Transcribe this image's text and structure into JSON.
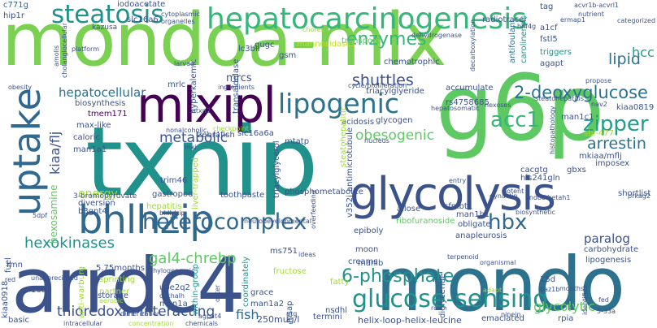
{
  "words": [
    {
      "text": "mondoa-mlx",
      "color": "#7ad151"
    },
    {
      "text": "txnip",
      "color": "#21918c"
    },
    {
      "text": "arrdc4",
      "color": "#3b528b"
    },
    {
      "text": "mondo",
      "color": "#2c728e"
    },
    {
      "text": "g6p",
      "color": "#5ec962"
    },
    {
      "text": "mlxipl",
      "color": "#440154"
    },
    {
      "text": "glycolysis",
      "color": "#3b528b"
    },
    {
      "text": "bhlhzip",
      "color": "#31688e"
    },
    {
      "text": "uptake",
      "color": "#31688e"
    },
    {
      "text": "hepatocarcinogenesis",
      "color": "#35b779"
    },
    {
      "text": "steatosis",
      "color": "#21918c"
    },
    {
      "text": "lipogenic",
      "color": "#2c728e"
    },
    {
      "text": "glucose-sensing",
      "color": "#21918c"
    },
    {
      "text": "heterocomplex",
      "color": "#31688e"
    },
    {
      "text": "hbx",
      "color": "#31688e"
    },
    {
      "text": "acc1",
      "color": "#35b779"
    },
    {
      "text": "zipper",
      "color": "#1f9e89"
    },
    {
      "text": "arrestin",
      "color": "#2c728e"
    },
    {
      "text": "2-deoxyglucose",
      "color": "#2c728e"
    },
    {
      "text": "6-phosphate",
      "color": "#21918c"
    },
    {
      "text": "hexokinases",
      "color": "#21918c"
    },
    {
      "text": "gal4-chrebp",
      "color": "#5ec962"
    },
    {
      "text": "thioredoxin-interacting",
      "color": "#3b528b"
    },
    {
      "text": "hepatocellular",
      "color": "#2c728e"
    },
    {
      "text": "metabolic",
      "color": "#3b528b"
    },
    {
      "text": "obesogenic",
      "color": "#5ec962"
    },
    {
      "text": "shuttles",
      "color": "#3b528b"
    },
    {
      "text": "enzymes",
      "color": "#35b779"
    },
    {
      "text": "lipid",
      "color": "#2c728e"
    },
    {
      "text": "paralog",
      "color": "#3b528b"
    },
    {
      "text": "glycolytic",
      "color": "#5ec962"
    },
    {
      "text": "fish",
      "color": "#31688e"
    },
    {
      "text": "kiaa/flj",
      "color": "#3b528b"
    },
    {
      "text": "hexosamine",
      "color": "#5ec962"
    },
    {
      "text": "energy",
      "color": "#a0da39"
    },
    {
      "text": "hcc",
      "color": "#1f9e89"
    },
    {
      "text": "mrcs",
      "color": "#3b528b"
    },
    {
      "text": "c771g",
      "color": "#31688e"
    },
    {
      "text": "iodoacetate",
      "color": "#3b528b"
    },
    {
      "text": "slc16a6",
      "color": "#3b528b"
    },
    {
      "text": "kazusa",
      "color": "#3b528b"
    },
    {
      "text": "mannosidases",
      "color": "#c2df23"
    },
    {
      "text": "radiotracer",
      "color": "#3b528b"
    },
    {
      "text": "tag",
      "color": "#3b528b"
    },
    {
      "text": "a1cf",
      "color": "#3b528b"
    },
    {
      "text": "fstl5",
      "color": "#3b528b"
    },
    {
      "text": "triggers",
      "color": "#21918c"
    },
    {
      "text": "agapt",
      "color": "#3b528b"
    },
    {
      "text": "carolinensis",
      "color": "#21918c"
    },
    {
      "text": "antifoulant",
      "color": "#2c728e"
    },
    {
      "text": "chemotrophic",
      "color": "#3b528b"
    },
    {
      "text": "transport",
      "color": "#5ec962"
    },
    {
      "text": "gsm",
      "color": "#3b528b"
    },
    {
      "text": "lc3bii",
      "color": "#3b528b"
    },
    {
      "text": "gugc",
      "color": "#3b528b"
    },
    {
      "text": "mrlc",
      "color": "#3b528b"
    },
    {
      "text": "hyperkalemic",
      "color": "#3b528b"
    },
    {
      "text": "transaldolase",
      "color": "#3b528b"
    },
    {
      "text": "triacylglyeride",
      "color": "#3b528b"
    },
    {
      "text": "accumulate",
      "color": "#3b528b"
    },
    {
      "text": "rs4758685",
      "color": "#3b528b"
    },
    {
      "text": "biosynthesis",
      "color": "#3b528b"
    },
    {
      "text": "tmem171",
      "color": "#440154"
    },
    {
      "text": "max-like",
      "color": "#3b528b"
    },
    {
      "text": "caloric",
      "color": "#3b528b"
    },
    {
      "text": "man1a1",
      "color": "#3b528b"
    },
    {
      "text": "zebrafish",
      "color": "#3b528b"
    },
    {
      "text": "slc16a6a",
      "color": "#3b528b"
    },
    {
      "text": "mtatp",
      "color": "#3b528b"
    },
    {
      "text": "acidosis",
      "color": "#3b528b"
    },
    {
      "text": "glycogen",
      "color": "#3b528b"
    },
    {
      "text": "man1c1",
      "color": "#3b528b"
    },
    {
      "text": "mkiaa/mflj",
      "color": "#3b528b"
    },
    {
      "text": "his241gln",
      "color": "#3b528b"
    },
    {
      "text": "sbi-477",
      "color": "#a0da39"
    },
    {
      "text": "kiaa0819",
      "color": "#3b528b"
    },
    {
      "text": "imposex",
      "color": "#3b528b"
    },
    {
      "text": "gbxs",
      "color": "#3b528b"
    },
    {
      "text": "cacgtg",
      "color": "#3b528b"
    },
    {
      "text": "shortlist",
      "color": "#3b528b"
    },
    {
      "text": "sfmbt1",
      "color": "#3b528b"
    },
    {
      "text": "allose",
      "color": "#3b528b"
    },
    {
      "text": "man1b1",
      "color": "#3b528b"
    },
    {
      "text": "ribofuranoside",
      "color": "#5ec962"
    },
    {
      "text": "epiboly",
      "color": "#3b528b"
    },
    {
      "text": "obligate",
      "color": "#3b528b"
    },
    {
      "text": "carbohydrate",
      "color": "#3b528b"
    },
    {
      "text": "lipogenesis",
      "color": "#3b528b"
    },
    {
      "text": "anapleurosis",
      "color": "#3b528b"
    },
    {
      "text": "creams",
      "color": "#3b528b"
    },
    {
      "text": "moon",
      "color": "#3b528b"
    },
    {
      "text": "ms751",
      "color": "#3b528b"
    },
    {
      "text": "fructose",
      "color": "#a0da39"
    },
    {
      "text": "fatty",
      "color": "#a0da39"
    },
    {
      "text": "diglyceride",
      "color": "#3b528b"
    },
    {
      "text": "15d",
      "color": "#3b528b"
    },
    {
      "text": "rpia",
      "color": "#3b528b"
    },
    {
      "text": "emaciated",
      "color": "#3b528b"
    },
    {
      "text": "helix-loop-helix-leucine",
      "color": "#3b528b"
    },
    {
      "text": "termini",
      "color": "#3b528b"
    },
    {
      "text": "nsdhl",
      "color": "#3b528b"
    },
    {
      "text": "250mug/l",
      "color": "#3b528b"
    },
    {
      "text": "grace",
      "color": "#3b528b"
    },
    {
      "text": "man1a2",
      "color": "#3b528b"
    },
    {
      "text": "ube2q2",
      "color": "#3b528b"
    },
    {
      "text": "man1a",
      "color": "#3b528b"
    },
    {
      "text": "partner",
      "color": "#a0da39"
    },
    {
      "text": "sprinting",
      "color": "#a0da39"
    },
    {
      "text": "storage",
      "color": "#3b528b"
    },
    {
      "text": "5.75months",
      "color": "#3b528b"
    },
    {
      "text": "16a",
      "color": "#3b528b"
    },
    {
      "text": "basic",
      "color": "#3b528b"
    },
    {
      "text": "kiaa0918",
      "color": "#3b528b"
    },
    {
      "text": "hip1r",
      "color": "#3b528b"
    },
    {
      "text": "trim46",
      "color": "#3b528b"
    },
    {
      "text": "gastropod",
      "color": "#3b528b"
    },
    {
      "text": "hepatitis",
      "color": "#a0da39"
    },
    {
      "text": "diversion",
      "color": "#3b528b"
    },
    {
      "text": "b3gnt4",
      "color": "#3b528b"
    },
    {
      "text": "3-bromopyruvate",
      "color": "#3b528b"
    },
    {
      "text": "toothpaste",
      "color": "#3b528b"
    },
    {
      "text": "phosphometabolite",
      "color": "#3b528b"
    },
    {
      "text": "within-group",
      "color": "#21918c"
    },
    {
      "text": "coordinately",
      "color": "#21918c"
    },
    {
      "text": "anti-warburg",
      "color": "#a0da39"
    },
    {
      "text": "liver-trapped",
      "color": "#a0da39"
    },
    {
      "text": "triacylglycerol",
      "color": "#3b528b"
    },
    {
      "text": "steatohepatitic",
      "color": "#a0da39"
    },
    {
      "text": "antimicrotubule",
      "color": "#3b528b"
    },
    {
      "text": "v352i",
      "color": "#3b528b"
    },
    {
      "text": "fuel",
      "color": "#3b528b"
    },
    {
      "text": "rmn",
      "color": "#3b528b"
    },
    {
      "text": "msap",
      "color": "#3b528b"
    },
    {
      "text": "manlb",
      "color": "#3b528b"
    },
    {
      "text": "cytoplasmic",
      "color": "#3b528b"
    },
    {
      "text": "organelles",
      "color": "#3b528b"
    },
    {
      "text": "dehydrogenase",
      "color": "#3b528b"
    },
    {
      "text": "hnf4g",
      "color": "#3b528b"
    },
    {
      "text": "ermap1",
      "color": "#3b528b"
    },
    {
      "text": "nutrient",
      "color": "#3b528b"
    },
    {
      "text": "acvr1b-acvrl1",
      "color": "#3b528b"
    },
    {
      "text": "categorized",
      "color": "#3b528b"
    },
    {
      "text": "platform",
      "color": "#3b528b"
    },
    {
      "text": "larvae",
      "color": "#3b528b"
    },
    {
      "text": "chores",
      "color": "#a0da39"
    },
    {
      "text": "decarboxylation",
      "color": "#3b528b"
    },
    {
      "text": "propose",
      "color": "#3b528b"
    },
    {
      "text": "obesity",
      "color": "#3b528b"
    },
    {
      "text": "ingredients",
      "color": "#3b528b"
    },
    {
      "text": "cycle/proliferation",
      "color": "#3b528b"
    },
    {
      "text": "hepatosomatic",
      "color": "#3b528b"
    },
    {
      "text": "hexoses",
      "color": "#3b528b"
    },
    {
      "text": "steatohepatitis",
      "color": "#3b528b"
    },
    {
      "text": "nav2",
      "color": "#3b528b"
    },
    {
      "text": "histopathology",
      "color": "#3b528b"
    },
    {
      "text": "atxn2",
      "color": "#3b528b"
    },
    {
      "text": "checkpoint",
      "color": "#a0da39"
    },
    {
      "text": "nonalcoholic",
      "color": "#3b528b"
    },
    {
      "text": "mxi",
      "color": "#3b528b"
    },
    {
      "text": "bhlh/zip",
      "color": "#3b528b"
    },
    {
      "text": "nucleus",
      "color": "#3b528b"
    },
    {
      "text": "entry",
      "color": "#3b528b"
    },
    {
      "text": "dynactin",
      "color": "#3b528b"
    },
    {
      "text": "potent",
      "color": "#3b528b"
    },
    {
      "text": "endoc-betah1",
      "color": "#3b528b"
    },
    {
      "text": "prkag2",
      "color": "#3b528b"
    },
    {
      "text": "biosynthetic",
      "color": "#3b528b"
    },
    {
      "text": "terpenoid",
      "color": "#3b528b"
    },
    {
      "text": "organismal",
      "color": "#3b528b"
    },
    {
      "text": "unappreciated",
      "color": "#3b528b"
    },
    {
      "text": "phylogenomic",
      "color": "#3b528b"
    },
    {
      "text": "cachalh",
      "color": "#3b528b"
    },
    {
      "text": "ideas",
      "color": "#3b528b"
    },
    {
      "text": "overfeeding",
      "color": "#3b528b"
    },
    {
      "text": "agpat4",
      "color": "#3b528b"
    },
    {
      "text": "outer",
      "color": "#3b528b"
    },
    {
      "text": "ptg",
      "color": "#3b528b"
    },
    {
      "text": "rox",
      "color": "#3b528b"
    },
    {
      "text": "months",
      "color": "#3b528b"
    },
    {
      "text": "adapt",
      "color": "#a0da39"
    },
    {
      "text": "baz1b",
      "color": "#3b528b"
    },
    {
      "text": "identifies",
      "color": "#3b528b"
    },
    {
      "text": "5-33a",
      "color": "#3b528b"
    },
    {
      "text": "fed",
      "color": "#3b528b"
    },
    {
      "text": "intracellular",
      "color": "#3b528b"
    },
    {
      "text": "concentration",
      "color": "#a0da39"
    },
    {
      "text": "chemicals",
      "color": "#3b528b"
    },
    {
      "text": "dimerization",
      "color": "#3b528b"
    },
    {
      "text": "red",
      "color": "#3b528b"
    },
    {
      "text": "5dpf",
      "color": "#3b528b"
    },
    {
      "text": "aerobic",
      "color": "#a0da39"
    },
    {
      "text": "amolis",
      "color": "#3b528b"
    },
    {
      "text": "cholangiocellular",
      "color": "#3b528b"
    },
    {
      "text": "neurodevelopmental",
      "color": "#3b528b"
    },
    {
      "text": "ninein",
      "color": "#3b528b"
    }
  ]
}
